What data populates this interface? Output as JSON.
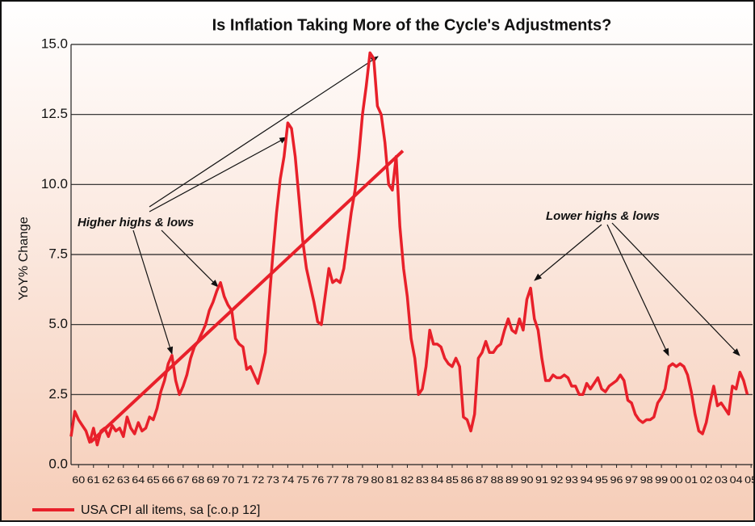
{
  "chart_data": {
    "type": "line",
    "title": "Is Inflation Taking More of the Cycle's Adjustments?",
    "y_label": "YoY% Change",
    "annotations": [
      "Higher highs & lows",
      "Lower highs & lows"
    ],
    "x": [
      1960,
      1960.25,
      1960.5,
      1960.75,
      1961,
      1961.25,
      1961.5,
      1961.75,
      1962,
      1962.25,
      1962.5,
      1962.75,
      1963,
      1963.25,
      1963.5,
      1963.75,
      1964,
      1964.25,
      1964.5,
      1964.75,
      1965,
      1965.25,
      1965.5,
      1965.75,
      1966,
      1966.25,
      1966.5,
      1966.75,
      1967,
      1967.25,
      1967.5,
      1967.75,
      1968,
      1968.25,
      1968.5,
      1968.75,
      1969,
      1969.25,
      1969.5,
      1969.75,
      1970,
      1970.25,
      1970.5,
      1970.75,
      1971,
      1971.25,
      1971.5,
      1971.75,
      1972,
      1972.25,
      1972.5,
      1972.75,
      1973,
      1973.25,
      1973.5,
      1973.75,
      1974,
      1974.25,
      1974.5,
      1974.75,
      1975,
      1975.25,
      1975.5,
      1975.75,
      1976,
      1976.25,
      1976.5,
      1976.75,
      1977,
      1977.25,
      1977.5,
      1977.75,
      1978,
      1978.25,
      1978.5,
      1978.75,
      1979,
      1979.25,
      1979.5,
      1979.75,
      1980,
      1980.25,
      1980.5,
      1980.75,
      1981,
      1981.25,
      1981.5,
      1981.75,
      1982,
      1982.25,
      1982.5,
      1982.75,
      1983,
      1983.25,
      1983.5,
      1983.75,
      1984,
      1984.25,
      1984.5,
      1984.75,
      1985,
      1985.25,
      1985.5,
      1985.75,
      1986,
      1986.25,
      1986.5,
      1986.75,
      1987,
      1987.25,
      1987.5,
      1987.75,
      1988,
      1988.25,
      1988.5,
      1988.75,
      1989,
      1989.25,
      1989.5,
      1989.75,
      1990,
      1990.25,
      1990.5,
      1990.75,
      1991,
      1991.25,
      1991.5,
      1991.75,
      1992,
      1992.25,
      1992.5,
      1992.75,
      1993,
      1993.25,
      1993.5,
      1993.75,
      1994,
      1994.25,
      1994.5,
      1994.75,
      1995,
      1995.25,
      1995.5,
      1995.75,
      1996,
      1996.25,
      1996.5,
      1996.75,
      1997,
      1997.25,
      1997.5,
      1997.75,
      1998,
      1998.25,
      1998.5,
      1998.75,
      1999,
      1999.25,
      1999.5,
      1999.75,
      2000,
      2000.25,
      2000.5,
      2000.75,
      2001,
      2001.25,
      2001.5,
      2001.75,
      2002,
      2002.25,
      2002.5,
      2002.75,
      2003,
      2003.25,
      2003.5,
      2003.75,
      2004,
      2004.25,
      2004.5,
      2004.75,
      2005,
      2005.25
    ],
    "series": [
      {
        "name": "USA CPI all items, sa   [c.o.p 12]",
        "color": "#e8202a",
        "values": [
          1.0,
          1.9,
          1.6,
          1.4,
          1.2,
          0.8,
          1.3,
          0.7,
          1.2,
          1.3,
          1.0,
          1.4,
          1.2,
          1.3,
          1.0,
          1.7,
          1.3,
          1.1,
          1.5,
          1.2,
          1.3,
          1.7,
          1.6,
          2.0,
          2.6,
          3.0,
          3.6,
          3.9,
          3.0,
          2.5,
          2.8,
          3.2,
          3.8,
          4.2,
          4.4,
          4.7,
          5.0,
          5.5,
          5.8,
          6.2,
          6.5,
          6.0,
          5.7,
          5.5,
          4.5,
          4.3,
          4.2,
          3.4,
          3.5,
          3.2,
          2.9,
          3.4,
          4.0,
          5.8,
          7.5,
          9.0,
          10.2,
          11.0,
          12.2,
          12.0,
          11.0,
          9.5,
          8.0,
          7.0,
          6.4,
          5.8,
          5.1,
          5.0,
          6.0,
          7.0,
          6.5,
          6.6,
          6.5,
          7.0,
          8.0,
          9.0,
          9.8,
          11.0,
          12.5,
          13.5,
          14.7,
          14.5,
          12.8,
          12.5,
          11.5,
          10.0,
          9.8,
          11.0,
          8.5,
          7.0,
          6.0,
          4.5,
          3.8,
          2.5,
          2.7,
          3.5,
          4.8,
          4.3,
          4.3,
          4.2,
          3.8,
          3.6,
          3.5,
          3.8,
          3.5,
          1.7,
          1.6,
          1.2,
          1.8,
          3.8,
          4.0,
          4.4,
          4.0,
          4.0,
          4.2,
          4.3,
          4.8,
          5.2,
          4.8,
          4.7,
          5.2,
          4.8,
          5.9,
          6.3,
          5.2,
          4.8,
          3.8,
          3.0,
          3.0,
          3.2,
          3.1,
          3.1,
          3.2,
          3.1,
          2.8,
          2.8,
          2.5,
          2.5,
          2.9,
          2.7,
          2.9,
          3.1,
          2.7,
          2.6,
          2.8,
          2.9,
          3.0,
          3.2,
          3.0,
          2.3,
          2.2,
          1.8,
          1.6,
          1.5,
          1.6,
          1.6,
          1.7,
          2.2,
          2.4,
          2.7,
          3.5,
          3.6,
          3.5,
          3.6,
          3.5,
          3.2,
          2.6,
          1.8,
          1.2,
          1.1,
          1.5,
          2.2,
          2.8,
          2.1,
          2.2,
          2.0,
          1.8,
          2.8,
          2.7,
          3.3,
          3.0,
          2.5
        ]
      }
    ],
    "trend": {
      "x": [
        1961.3,
        1982.2
      ],
      "values": [
        0.8,
        11.2
      ],
      "color": "#e8202a"
    },
    "xlim": [
      1960,
      2005.6
    ],
    "xticks": [
      {
        "value": 1960.5,
        "label": "60"
      },
      {
        "value": 1961.5,
        "label": "61"
      },
      {
        "value": 1962.5,
        "label": "62"
      },
      {
        "value": 1963.5,
        "label": "63"
      },
      {
        "value": 1964.5,
        "label": "64"
      },
      {
        "value": 1965.5,
        "label": "65"
      },
      {
        "value": 1966.5,
        "label": "66"
      },
      {
        "value": 1967.5,
        "label": "67"
      },
      {
        "value": 1968.5,
        "label": "68"
      },
      {
        "value": 1969.5,
        "label": "69"
      },
      {
        "value": 1970.5,
        "label": "70"
      },
      {
        "value": 1971.5,
        "label": "71"
      },
      {
        "value": 1972.5,
        "label": "72"
      },
      {
        "value": 1973.5,
        "label": "73"
      },
      {
        "value": 1974.5,
        "label": "74"
      },
      {
        "value": 1975.5,
        "label": "75"
      },
      {
        "value": 1976.5,
        "label": "76"
      },
      {
        "value": 1977.5,
        "label": "77"
      },
      {
        "value": 1978.5,
        "label": "78"
      },
      {
        "value": 1979.5,
        "label": "79"
      },
      {
        "value": 1980.5,
        "label": "80"
      },
      {
        "value": 1981.5,
        "label": "81"
      },
      {
        "value": 1982.5,
        "label": "82"
      },
      {
        "value": 1983.5,
        "label": "83"
      },
      {
        "value": 1984.5,
        "label": "84"
      },
      {
        "value": 1985.5,
        "label": "85"
      },
      {
        "value": 1986.5,
        "label": "86"
      },
      {
        "value": 1987.5,
        "label": "87"
      },
      {
        "value": 1988.5,
        "label": "88"
      },
      {
        "value": 1989.5,
        "label": "89"
      },
      {
        "value": 1990.5,
        "label": "90"
      },
      {
        "value": 1991.5,
        "label": "91"
      },
      {
        "value": 1992.5,
        "label": "92"
      },
      {
        "value": 1993.5,
        "label": "93"
      },
      {
        "value": 1994.5,
        "label": "94"
      },
      {
        "value": 1995.5,
        "label": "95"
      },
      {
        "value": 1996.5,
        "label": "96"
      },
      {
        "value": 1997.5,
        "label": "97"
      },
      {
        "value": 1998.5,
        "label": "98"
      },
      {
        "value": 1999.5,
        "label": "99"
      },
      {
        "value": 2000.5,
        "label": "00"
      },
      {
        "value": 2001.5,
        "label": "01"
      },
      {
        "value": 2002.5,
        "label": "02"
      },
      {
        "value": 2003.5,
        "label": "03"
      },
      {
        "value": 2004.5,
        "label": "04"
      },
      {
        "value": 2005.5,
        "label": "05"
      }
    ],
    "ylim": [
      0,
      15
    ],
    "yticks": [
      {
        "value": 0,
        "label": "0.0"
      },
      2.5,
      {
        "value": 5,
        "label": "5.0"
      },
      7.5,
      {
        "value": 10,
        "label": "10.0"
      },
      12.5,
      {
        "value": 15,
        "label": "15.0"
      }
    ],
    "grid": true
  }
}
